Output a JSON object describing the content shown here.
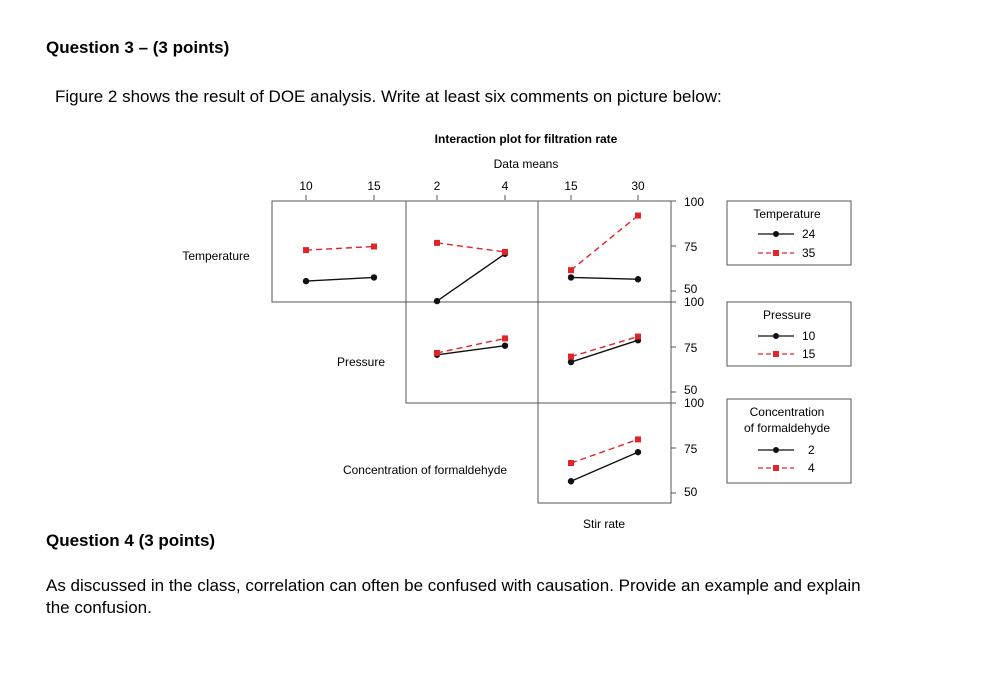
{
  "question3": {
    "heading": "Question 3 – (3 points)",
    "text": "Figure 2 shows the result of DOE analysis. Write at least six comments on picture below:"
  },
  "question4": {
    "heading": "Question 4 (3 points)",
    "text_line1": "As discussed in the class, correlation can often be confused with causation. Provide an example and explain",
    "text_line2": "the confusion."
  },
  "colors": {
    "level_low": "#111111",
    "level_high": "#e0242a",
    "frame": "#555555"
  },
  "chart_data": {
    "type": "line",
    "title": "Interaction plot for filtration rate",
    "subtitle": "Data means",
    "ylim": [
      50,
      100
    ],
    "y_ticks": [
      50,
      75,
      100
    ],
    "factors": [
      {
        "name": "Temperature",
        "levels": [
          "10",
          "15"
        ]
      },
      {
        "name": "Pressure",
        "levels": [
          "2",
          "4"
        ]
      },
      {
        "name": "Concentration of formaldehyde",
        "levels": [
          "15",
          "30"
        ]
      },
      {
        "name": "Stir rate"
      }
    ],
    "legends": [
      {
        "title": "Temperature",
        "entries": [
          "24",
          "35"
        ]
      },
      {
        "title": "Pressure",
        "entries": [
          "10",
          "15"
        ]
      },
      {
        "title": [
          "Concentration",
          "of formaldehyde"
        ],
        "entries": [
          "2",
          "4"
        ]
      }
    ],
    "panels": [
      {
        "row": 0,
        "col": 0,
        "low": [
          56,
          58
        ],
        "high": [
          73,
          75
        ]
      },
      {
        "row": 0,
        "col": 1,
        "low": [
          45,
          71
        ],
        "high": [
          77,
          72
        ]
      },
      {
        "row": 0,
        "col": 2,
        "low": [
          58,
          57
        ],
        "high": [
          62,
          92
        ]
      },
      {
        "row": 1,
        "col": 1,
        "low": [
          71,
          76
        ],
        "high": [
          72,
          80
        ]
      },
      {
        "row": 1,
        "col": 2,
        "low": [
          67,
          79
        ],
        "high": [
          70,
          81
        ]
      },
      {
        "row": 2,
        "col": 2,
        "low": [
          57,
          73
        ],
        "high": [
          67,
          80
        ]
      }
    ]
  }
}
